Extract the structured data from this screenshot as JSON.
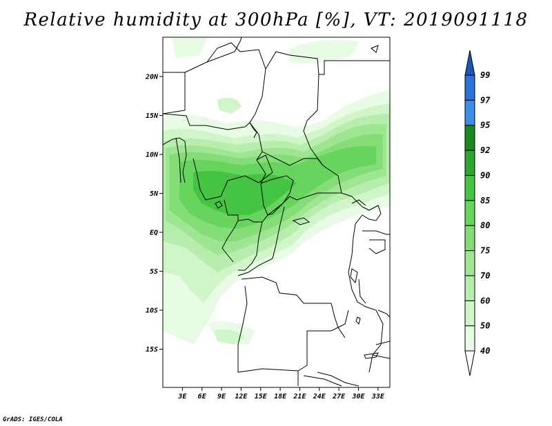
{
  "title": "Relative humidity at 300hPa [%], VT: 2019091118",
  "credit": "GrADS: IGES/COLA",
  "map": {
    "lat_ticks": [
      {
        "lat": 20,
        "label": "20N"
      },
      {
        "lat": 15,
        "label": "15N"
      },
      {
        "lat": 10,
        "label": "10N"
      },
      {
        "lat": 5,
        "label": "5N"
      },
      {
        "lat": 0,
        "label": "EQ"
      },
      {
        "lat": -5,
        "label": "5S"
      },
      {
        "lat": -10,
        "label": "10S"
      },
      {
        "lat": -15,
        "label": "15S"
      }
    ],
    "lon_ticks": [
      {
        "lon": 3,
        "label": "3E"
      },
      {
        "lon": 6,
        "label": "6E"
      },
      {
        "lon": 9,
        "label": "9E"
      },
      {
        "lon": 12,
        "label": "12E"
      },
      {
        "lon": 15,
        "label": "15E"
      },
      {
        "lon": 18,
        "label": "18E"
      },
      {
        "lon": 21,
        "label": "21E"
      },
      {
        "lon": 24,
        "label": "24E"
      },
      {
        "lon": 27,
        "label": "27E"
      },
      {
        "lon": 30,
        "label": "30E"
      },
      {
        "lon": 33,
        "label": "33E"
      }
    ]
  },
  "colorbar": {
    "levels": [
      {
        "label": "40",
        "color": "#e8fbe4"
      },
      {
        "label": "50",
        "color": "#d0f5c8"
      },
      {
        "label": "60",
        "color": "#b8eead"
      },
      {
        "label": "70",
        "color": "#9fe693"
      },
      {
        "label": "75",
        "color": "#85dd78"
      },
      {
        "label": "80",
        "color": "#66d45d"
      },
      {
        "label": "85",
        "color": "#45c444"
      },
      {
        "label": "90",
        "color": "#2ca630"
      },
      {
        "label": "92",
        "color": "#1a8a1f"
      },
      {
        "label": "95",
        "color": "#3d8ee8"
      },
      {
        "label": "97",
        "color": "#2a72da"
      },
      {
        "label": "99",
        "color": "#1e5ec8"
      }
    ],
    "below_color": "#ffffff",
    "above_color": "#2055b8"
  }
}
